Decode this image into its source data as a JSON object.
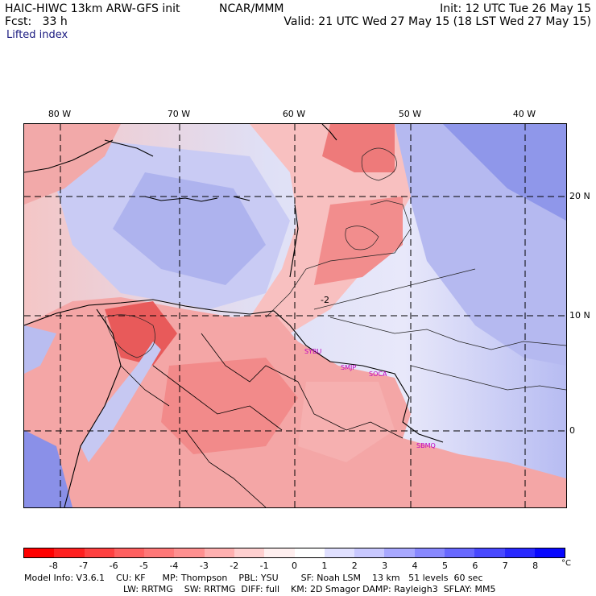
{
  "header": {
    "model": "HAIC-HIWC 13km ARW-GFS init",
    "org": "NCAR/MMM",
    "init": "Init: 12 UTC Tue 26 May 15",
    "fcst": "Fcst:   33 h",
    "valid": "Valid: 21 UTC Wed 27 May 15 (18 LST Wed 27 May 15)",
    "field": "Lifted index"
  },
  "map": {
    "lon_labels": [
      "80 W",
      "70 W",
      "60 W",
      "50 W",
      "40 W"
    ],
    "lat_labels": [
      "20 N",
      "10 N",
      "0"
    ],
    "stations": [
      "SYBU",
      "SMJP",
      "SOCA",
      "SBMQ"
    ]
  },
  "colorbar": {
    "unit": "°C",
    "ticks": [
      "-8",
      "-7",
      "-6",
      "-5",
      "-4",
      "-3",
      "-2",
      "-1",
      "0",
      "1",
      "2",
      "3",
      "4",
      "5",
      "6",
      "7",
      "8"
    ],
    "colors": [
      "#ff0000",
      "#ff2020",
      "#ff4040",
      "#ff6060",
      "#ff7878",
      "#ff9090",
      "#ffb0b0",
      "#ffd0d0",
      "#ffefef",
      "#ffffff",
      "#e0e0ff",
      "#c8c8ff",
      "#a8a8ff",
      "#8888ff",
      "#6868ff",
      "#4848ff",
      "#2828ff",
      "#0808ff"
    ]
  },
  "footer": {
    "line1": "Model Info: V3.6.1    CU: KF      MP: Thompson    PBL: YSU        SF: Noah LSM    13 km   51 levels  60 sec",
    "line2": "LW: RRTMG    SW: RRTMG  DIFF: full    KM: 2D Smagor DAMP: Rayleigh3  SFLAY: MM5"
  }
}
